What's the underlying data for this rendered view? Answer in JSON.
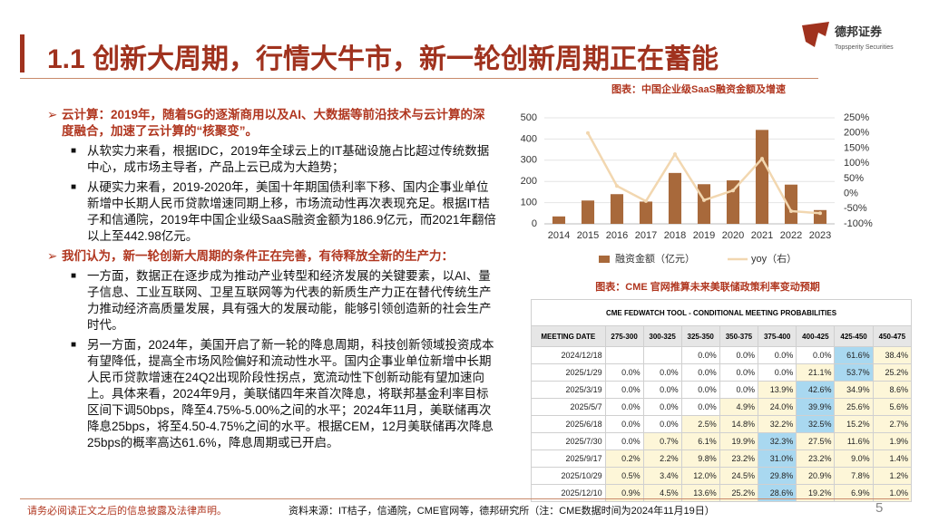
{
  "header": {
    "title": "1.1 创新大周期，行情大牛市，新一轮创新周期正在蓄能",
    "logo_name": "德邦证券",
    "logo_sub": "Topsperity Securities"
  },
  "bullets": [
    {
      "text": "云计算：2019年，随着5G的逐渐商用以及AI、大数据等前沿技术与云计算的深度融合，加速了云计算的“核聚变”。",
      "subs": [
        "从软实力来看，根据IDC，2019年全球云上的IT基础设施占比超过传统数据中心，成市场主导者，产品上云已成为大趋势；",
        "从硬实力来看，2019-2020年，美国十年期国债利率下移、国内企事业单位新增中长期人民币贷款增速同期上移，市场流动性再次表现充足。根据IT桔子和信通院，2019年中国企业级SaaS融资金额为186.9亿元，而2021年翻倍以上至442.98亿元。"
      ]
    },
    {
      "text": "我们认为，新一轮创新大周期的条件正在完善，有待释放全新的生产力：",
      "subs": [
        "一方面，数据正在逐步成为推动产业转型和经济发展的关键要素，以AI、量子信息、工业互联网、卫星互联网等为代表的新质生产力正在替代传统生产力推动经济高质量发展，具有强大的发展动能，能够引领创造新的社会生产时代。",
        "另一方面，2024年，美国开启了新一轮的降息周期，科技创新领域投资成本有望降低，提高全市场风险偏好和流动性水平。国内企事业单位新增中长期人民币贷款增速在24Q2出现阶段性拐点，宽流动性下创新动能有望加速向上。具体来看，2024年9月，美联储四年来首次降息，将联邦基金利率目标区间下调50bps，降至4.75%-5.00%之间的水平；2024年11月，美联储再次降息25bps，将至4.50-4.75%之间的水平。根据CEM，12月美联储再次降息25bps的概率高达61.6%，降息周期或已开启。"
      ]
    }
  ],
  "chart_data": {
    "type": "bar",
    "title": "图表：中国企业级SaaS融资金额及增速",
    "categories": [
      "2014",
      "2015",
      "2016",
      "2017",
      "2018",
      "2019",
      "2020",
      "2021",
      "2022",
      "2023"
    ],
    "series": [
      {
        "name": "融资金额（亿元）",
        "type": "bar",
        "color": "#a8693b",
        "values": [
          35,
          110,
          140,
          105,
          240,
          186.9,
          205,
          442.98,
          185,
          65
        ]
      },
      {
        "name": "yoy（右）",
        "type": "line",
        "axis": "y2",
        "color": "#f2d7b0",
        "values": [
          null,
          200,
          25,
          -25,
          130,
          -22,
          10,
          115,
          -58,
          -65
        ]
      }
    ],
    "ylim": [
      0,
      500
    ],
    "yticks": [
      0,
      100,
      200,
      300,
      400,
      500
    ],
    "y2lim": [
      -100,
      250
    ],
    "y2ticks": [
      {
        "value": -100,
        "label": "-100%"
      },
      {
        "value": -50,
        "label": "-50%"
      },
      {
        "value": 0,
        "label": "0%"
      },
      {
        "value": 50,
        "label": "50%"
      },
      {
        "value": 100,
        "label": "100%"
      },
      {
        "value": 150,
        "label": "150%"
      },
      {
        "value": 200,
        "label": "200%"
      },
      {
        "value": 250,
        "label": "250%"
      }
    ],
    "grid": true
  },
  "table": {
    "title": "图表：CME 官网推算未来美联储政策利率变动预期",
    "caption": "CME FEDWATCH TOOL - CONDITIONAL MEETING PROBABILITIES",
    "columns": [
      "MEETING DATE",
      "275-300",
      "300-325",
      "325-350",
      "350-375",
      "375-400",
      "400-425",
      "425-450",
      "450-475"
    ],
    "rows": [
      [
        "2024/12/18",
        null,
        null,
        "0.0%",
        "0.0%",
        "0.0%",
        "0.0%",
        "61.6%",
        "38.4%"
      ],
      [
        "2025/1/29",
        "0.0%",
        "0.0%",
        "0.0%",
        "0.0%",
        "0.0%",
        "21.1%",
        "53.7%",
        "25.2%"
      ],
      [
        "2025/3/19",
        "0.0%",
        "0.0%",
        "0.0%",
        "0.0%",
        "13.9%",
        "42.6%",
        "34.9%",
        "8.6%"
      ],
      [
        "2025/5/7",
        "0.0%",
        "0.0%",
        "0.0%",
        "4.9%",
        "24.0%",
        "39.9%",
        "25.6%",
        "5.6%"
      ],
      [
        "2025/6/18",
        "0.0%",
        "0.0%",
        "2.5%",
        "14.8%",
        "32.2%",
        "32.5%",
        "15.2%",
        "2.7%"
      ],
      [
        "2025/7/30",
        "0.0%",
        "0.7%",
        "6.1%",
        "19.9%",
        "32.3%",
        "27.5%",
        "11.6%",
        "1.9%"
      ],
      [
        "2025/9/17",
        "0.2%",
        "2.2%",
        "9.8%",
        "23.2%",
        "31.0%",
        "23.2%",
        "9.0%",
        "1.4%"
      ],
      [
        "2025/10/29",
        "0.5%",
        "3.4%",
        "12.0%",
        "24.5%",
        "29.8%",
        "20.9%",
        "7.8%",
        "1.2%"
      ],
      [
        "2025/12/10",
        "0.9%",
        "4.5%",
        "13.6%",
        "25.2%",
        "28.6%",
        "19.2%",
        "6.9%",
        "1.0%"
      ]
    ]
  },
  "footer": {
    "disclaimer": "请务必阅读正文之后的信息披露及法律声明。",
    "source": "资料来源：IT桔子，信通院，CME官网等，德邦研究所（注：CME数据时间为2024年11月19日）",
    "page": "5"
  }
}
